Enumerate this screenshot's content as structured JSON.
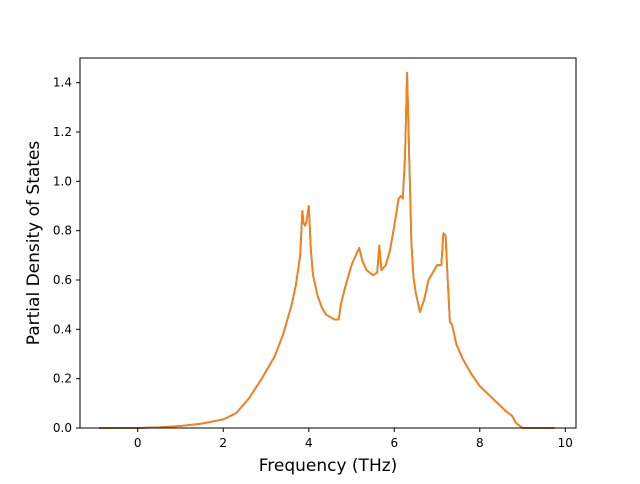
{
  "chart_data": {
    "type": "line",
    "title": "",
    "xlabel": "Frequency (THz)",
    "ylabel": "Partial Density of States",
    "xlim": [
      -1.35,
      10.25
    ],
    "ylim": [
      0.0,
      1.5
    ],
    "xticks": [
      0,
      2,
      4,
      6,
      8,
      10
    ],
    "yticks": [
      0.0,
      0.2,
      0.4,
      0.6,
      0.8,
      1.0,
      1.2,
      1.4
    ],
    "xtick_labels": [
      "0",
      "2",
      "4",
      "6",
      "8",
      "10"
    ],
    "ytick_labels": [
      "0.0",
      "0.2",
      "0.4",
      "0.6",
      "0.8",
      "1.0",
      "1.2",
      "1.4"
    ],
    "grid": false,
    "legend": "none",
    "colors": {
      "series_under": "#1f77b4",
      "series_over": "#ff7f0e"
    },
    "series": [
      {
        "x": [
          -0.9,
          0.0,
          0.5,
          1.0,
          1.5,
          2.0,
          2.3,
          2.6,
          2.9,
          3.2,
          3.4,
          3.6,
          3.7,
          3.8,
          3.85,
          3.88,
          3.92,
          3.95,
          4.0,
          4.05,
          4.1,
          4.2,
          4.3,
          4.4,
          4.5,
          4.6,
          4.7,
          4.75,
          4.85,
          5.0,
          5.1,
          5.18,
          5.25,
          5.35,
          5.5,
          5.6,
          5.65,
          5.7,
          5.8,
          5.9,
          6.0,
          6.1,
          6.15,
          6.2,
          6.25,
          6.3,
          6.35,
          6.4,
          6.45,
          6.5,
          6.6,
          6.7,
          6.8,
          6.9,
          7.0,
          7.1,
          7.15,
          7.2,
          7.25,
          7.3,
          7.35,
          7.45,
          7.6,
          7.8,
          8.0,
          8.3,
          8.6,
          8.75,
          8.85,
          9.0,
          9.5,
          9.75
        ],
        "y": [
          0.0,
          0.0,
          0.003,
          0.008,
          0.018,
          0.035,
          0.06,
          0.12,
          0.2,
          0.29,
          0.38,
          0.5,
          0.58,
          0.7,
          0.88,
          0.83,
          0.82,
          0.84,
          0.9,
          0.72,
          0.62,
          0.54,
          0.49,
          0.46,
          0.45,
          0.44,
          0.44,
          0.5,
          0.57,
          0.66,
          0.7,
          0.73,
          0.68,
          0.64,
          0.62,
          0.63,
          0.74,
          0.64,
          0.66,
          0.72,
          0.82,
          0.93,
          0.94,
          0.93,
          1.1,
          1.44,
          1.1,
          0.75,
          0.61,
          0.55,
          0.47,
          0.52,
          0.6,
          0.63,
          0.66,
          0.66,
          0.79,
          0.78,
          0.6,
          0.43,
          0.42,
          0.34,
          0.28,
          0.22,
          0.17,
          0.12,
          0.07,
          0.05,
          0.02,
          0.0,
          0.0,
          0.0
        ]
      }
    ]
  }
}
